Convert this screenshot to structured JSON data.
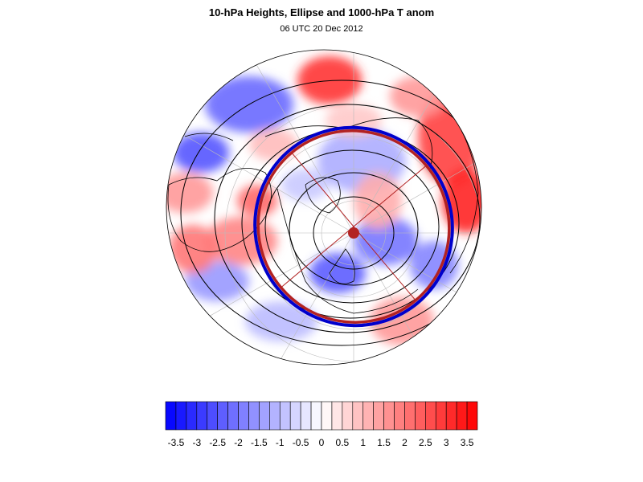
{
  "header": {
    "title": "10-hPa Heights, Ellipse and 1000-hPa T anom",
    "subtitle": "06 UTC 20 Dec 2012"
  },
  "colors": {
    "min_color": "#0000ff",
    "mid_color": "#ffffff",
    "max_color": "#ff0000",
    "ellipse_outer": "#0000cc",
    "ellipse_inner": "#b22222",
    "center_marker": "#b22222",
    "contour_lines": "#000000",
    "coastlines": "#000000",
    "grid": "#bbbbbb"
  },
  "colorbar": {
    "tick_labels": [
      "-3.5",
      "-3",
      "-2.5",
      "-2",
      "-1.5",
      "-1",
      "-0.5",
      "0",
      "0.5",
      "1",
      "1.5",
      "2",
      "2.5",
      "3",
      "3.5"
    ],
    "min": -3.75,
    "max": 3.75,
    "step": 0.25
  },
  "map": {
    "projection": "north polar stereographic",
    "anomaly_field_visible": true,
    "height_contours_visible": true,
    "ellipse_visible": true,
    "ellipse_axes_visible": true
  }
}
